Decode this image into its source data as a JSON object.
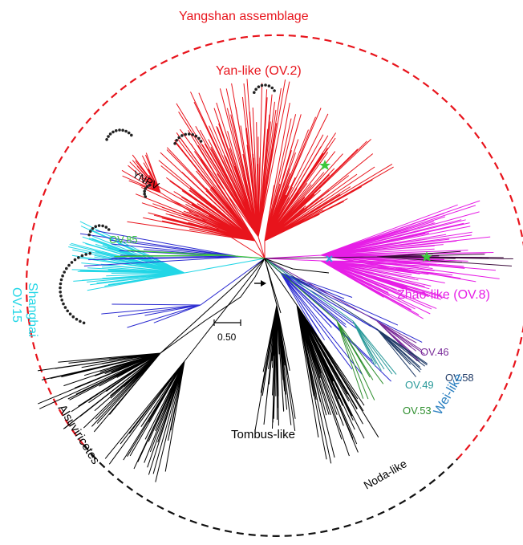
{
  "title": "Yangshan assemblage",
  "clades": {
    "yan": "Yan-like (OV.2)",
    "zhao": "Zhao-like (OV.8)",
    "shanghai_line1": "Shanghai",
    "shanghai_line2": "OV.15",
    "alsuviricetes": "Alsuviricetes",
    "tombus": "Tombus-like",
    "noda": "Noda-like",
    "wei": "Wei-like",
    "ov46": "OV.46",
    "ov58": "OV.58",
    "ov49": "OV.49",
    "ov53": "OV.53",
    "ov85": "OV.85",
    "ynpv": "YNPV"
  },
  "scale_bar": {
    "label": "0.50"
  },
  "colors": {
    "assemblage_circle": "#e8141c",
    "outside_circle": "#111111",
    "yan": "#e8141c",
    "zhao": "#e61ee6",
    "shanghai": "#22d6e6",
    "blue_clade": "#2a2ad0",
    "ov85": "#3cc83c",
    "ov46": "#7a2c9a",
    "ov58": "#1f3a66",
    "ov49": "#2a9a9a",
    "ov53": "#2f8f2f",
    "wei": "#2a7fc0",
    "black_clades": "#000000",
    "star": "#3cc83c",
    "cross": "#3aa0dc"
  }
}
